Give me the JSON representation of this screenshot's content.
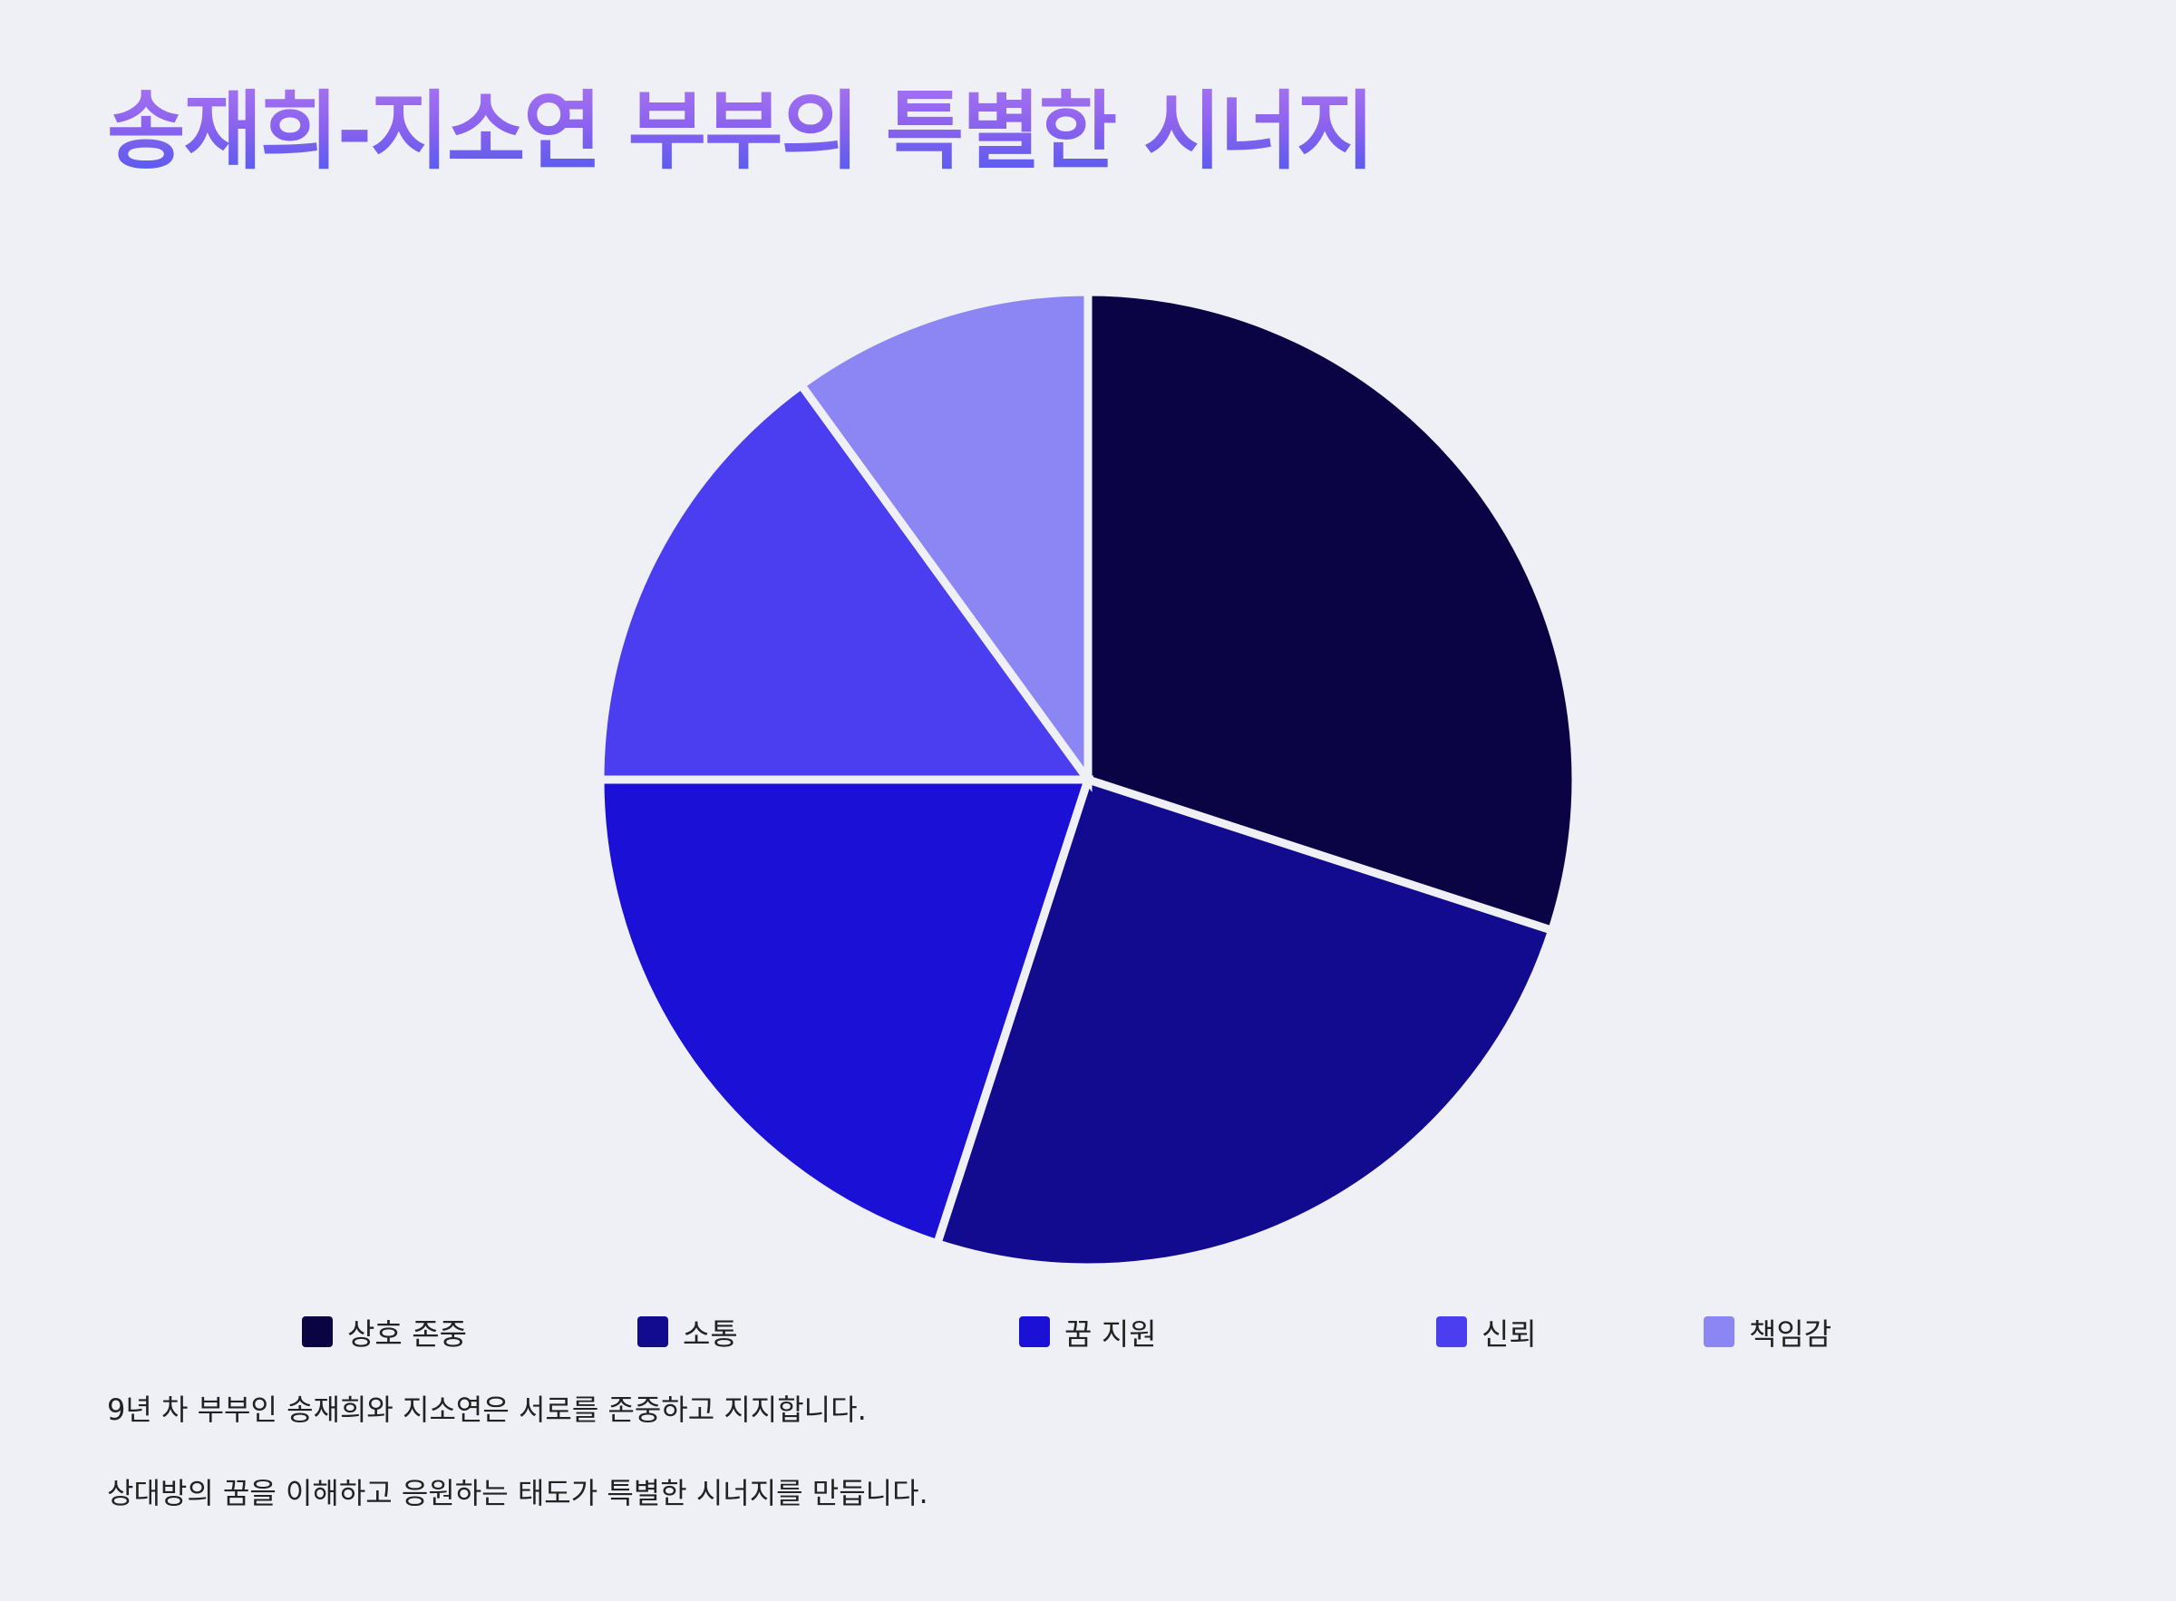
{
  "chart_data": {
    "type": "pie",
    "title": "송재희-지소연 부부의 특별한 시너지",
    "categories": [
      "상호 존중",
      "소통",
      "꿈 지원",
      "신뢰",
      "책임감"
    ],
    "values": [
      30,
      25,
      20,
      15,
      10
    ],
    "colors": [
      "#0b0444",
      "#130b8f",
      "#1b10d6",
      "#4a3ef0",
      "#8c86f5"
    ],
    "legend_position": "bottom",
    "start_angle_deg": 0,
    "direction": "clockwise"
  },
  "description": [
    "9년 차 부부인 송재희와 지소연은 서로를 존중하고 지지합니다.",
    "상대방의 꿈을 이해하고 응원하는 태도가 특별한 시너지를 만듭니다."
  ]
}
